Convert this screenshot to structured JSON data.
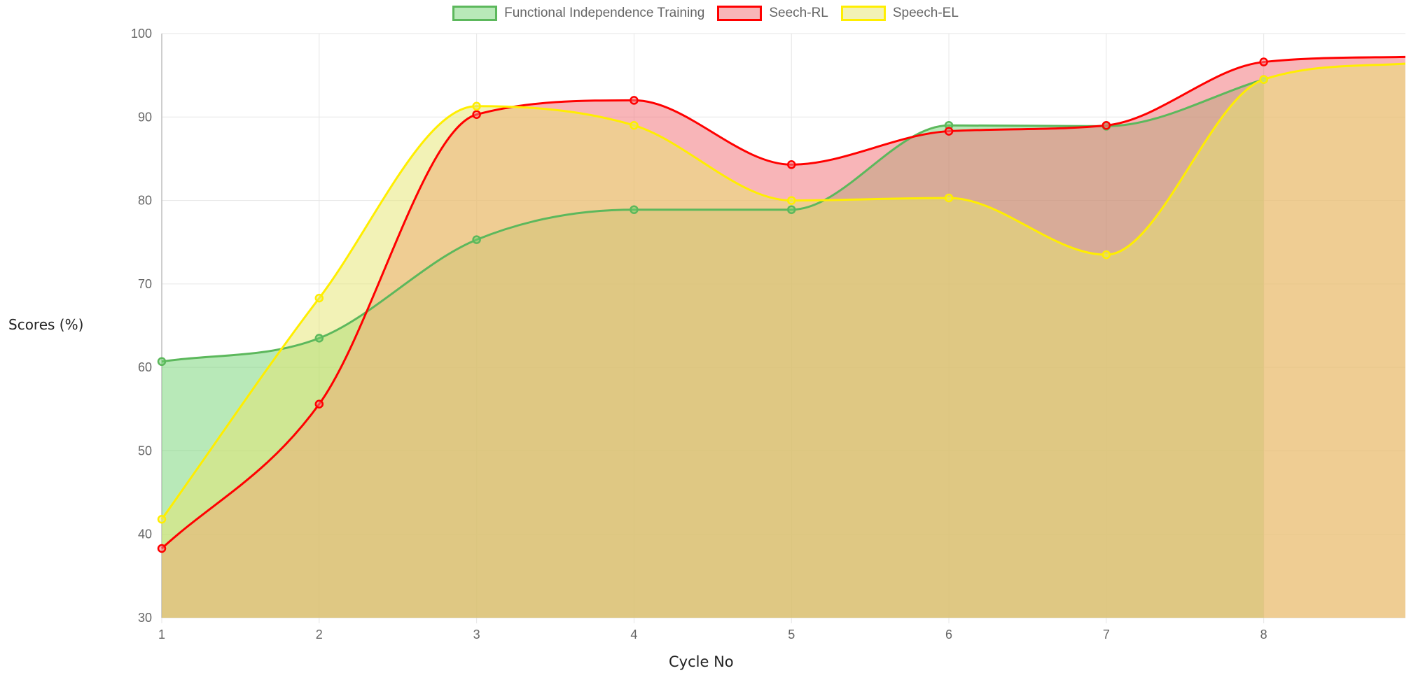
{
  "chart_data": {
    "type": "area",
    "xlabel": "Cycle No",
    "ylabel": "Scores (%)",
    "ylim": [
      30,
      100
    ],
    "yticks": [
      30,
      40,
      50,
      60,
      70,
      80,
      90,
      100
    ],
    "x_ticks": [
      "1",
      "2",
      "3",
      "4",
      "5",
      "6",
      "7",
      "8"
    ],
    "x_range": [
      1,
      8.9
    ],
    "grid": true,
    "legend_position": "top-center",
    "series": [
      {
        "name": "Functional Independence Training",
        "x": [
          1,
          2,
          3,
          4,
          5,
          6,
          7,
          8
        ],
        "values": [
          60.7,
          63.5,
          75.3,
          78.9,
          78.9,
          89.0,
          88.9,
          94.5
        ],
        "line_color": "#5cb85c",
        "fill_color": "rgba(106, 210, 106, 0.48)"
      },
      {
        "name": "Seech-RL",
        "x": [
          1,
          2,
          3,
          4,
          5,
          6,
          7,
          8,
          8.9
        ],
        "values": [
          38.3,
          55.6,
          90.3,
          92.0,
          84.3,
          88.3,
          89.0,
          96.6,
          97.2
        ],
        "line_color": "#ff0000",
        "fill_color": "rgba(242, 120, 125, 0.55)"
      },
      {
        "name": "Speech-EL",
        "x": [
          1,
          2,
          3,
          4,
          5,
          6,
          7,
          8,
          8.9
        ],
        "values": [
          41.8,
          68.3,
          91.3,
          89.0,
          80.0,
          80.3,
          73.5,
          94.5,
          96.4
        ],
        "line_color": "#ffee00",
        "fill_color": "rgba(230, 230, 110, 0.50)"
      }
    ]
  }
}
